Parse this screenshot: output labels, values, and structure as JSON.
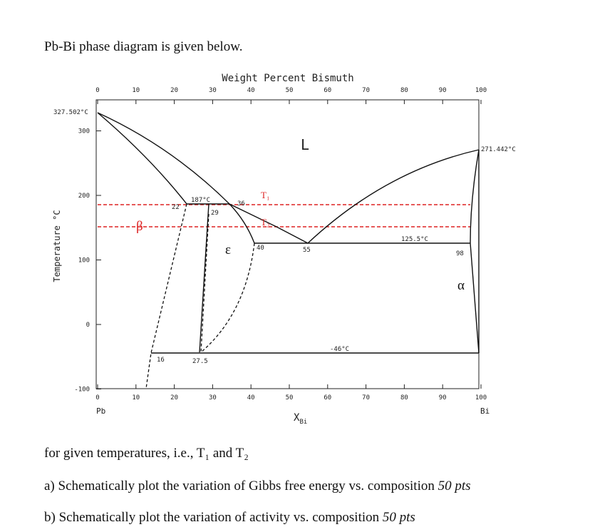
{
  "intro": "Pb-Bi phase diagram is given below.",
  "diagram": {
    "top_axis_label": "Weight Percent Bismuth",
    "y_axis_label": "Temperature °C",
    "wt_ticks": [
      0,
      10,
      20,
      30,
      40,
      50,
      60,
      70,
      80,
      90,
      100
    ],
    "y_ticks": [
      300,
      200,
      100,
      0,
      -100
    ],
    "labels": {
      "pb_melting": "327.502°C",
      "bi_melting": "271.442°C",
      "peritectic": "187°C",
      "eutectic": "125.5°C",
      "eutectoid": "-46°C",
      "c22": "22",
      "c29": "29",
      "c36": "36",
      "c40": "40",
      "c55": "55",
      "c98": "98",
      "c16": "16",
      "c27_5": "27.5",
      "liquid": "L",
      "beta": "β",
      "epsilon": "ε",
      "alpha": "α",
      "t1": "T₁",
      "t2": "T₂",
      "pb": "Pb",
      "bi": "Bi",
      "x": "X",
      "x_sub": "Bi"
    }
  },
  "question": {
    "lead": "for given temperatures, i.e., T₁ and T₂",
    "a_text": "a) Schematically plot the variation of Gibbs free energy vs. composition",
    "a_points": "50 pts",
    "b_text": "b) Schematically plot the variation of activity vs. composition",
    "b_points": "50 pts"
  }
}
